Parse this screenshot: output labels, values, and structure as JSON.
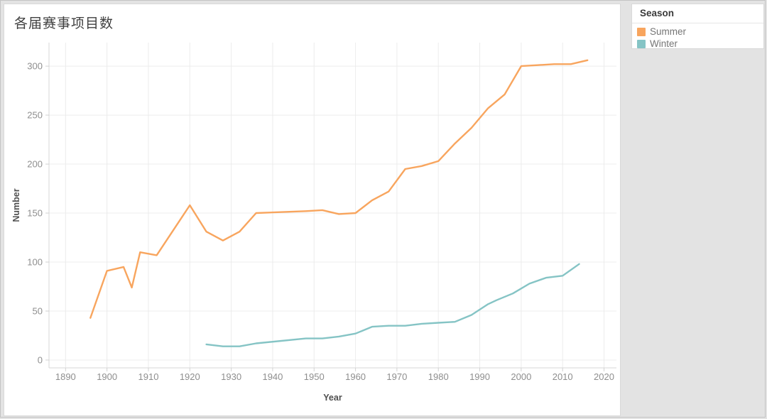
{
  "window": {
    "background_color": "#e3e3e3",
    "card_background": "#ffffff"
  },
  "title": "各届赛事项目数",
  "legend": {
    "title": "Season",
    "items": [
      {
        "label": "Summer",
        "color": "#F8A55E"
      },
      {
        "label": "Winter",
        "color": "#85C4C5"
      }
    ]
  },
  "chart_data": {
    "type": "line",
    "title": "各届赛事项目数",
    "xlabel": "Year",
    "ylabel": "Number",
    "xlim": [
      1886,
      2023
    ],
    "ylim": [
      -8,
      324
    ],
    "xticks": [
      1890,
      1900,
      1910,
      1920,
      1930,
      1940,
      1950,
      1960,
      1970,
      1980,
      1990,
      2000,
      2010,
      2020
    ],
    "yticks": [
      0,
      50,
      100,
      150,
      200,
      250,
      300
    ],
    "grid": true,
    "legend_position": "top-right",
    "series": [
      {
        "name": "Summer",
        "color": "#F8A55E",
        "points": [
          [
            1896,
            43
          ],
          [
            1900,
            91
          ],
          [
            1904,
            95
          ],
          [
            1906,
            74
          ],
          [
            1908,
            110
          ],
          [
            1912,
            107
          ],
          [
            1920,
            158
          ],
          [
            1924,
            131
          ],
          [
            1928,
            122
          ],
          [
            1932,
            131
          ],
          [
            1936,
            150
          ],
          [
            1948,
            152
          ],
          [
            1952,
            153
          ],
          [
            1956,
            149
          ],
          [
            1960,
            150
          ],
          [
            1964,
            163
          ],
          [
            1968,
            172
          ],
          [
            1972,
            195
          ],
          [
            1976,
            198
          ],
          [
            1980,
            203
          ],
          [
            1984,
            221
          ],
          [
            1988,
            237
          ],
          [
            1992,
            257
          ],
          [
            1996,
            271
          ],
          [
            2000,
            300
          ],
          [
            2004,
            301
          ],
          [
            2008,
            302
          ],
          [
            2012,
            302
          ],
          [
            2016,
            306
          ]
        ]
      },
      {
        "name": "Winter",
        "color": "#85C4C5",
        "points": [
          [
            1924,
            16
          ],
          [
            1928,
            14
          ],
          [
            1932,
            14
          ],
          [
            1936,
            17
          ],
          [
            1948,
            22
          ],
          [
            1952,
            22
          ],
          [
            1956,
            24
          ],
          [
            1960,
            27
          ],
          [
            1964,
            34
          ],
          [
            1968,
            35
          ],
          [
            1972,
            35
          ],
          [
            1976,
            37
          ],
          [
            1980,
            38
          ],
          [
            1984,
            39
          ],
          [
            1988,
            46
          ],
          [
            1992,
            57
          ],
          [
            1994,
            61
          ],
          [
            1998,
            68
          ],
          [
            2002,
            78
          ],
          [
            2006,
            84
          ],
          [
            2010,
            86
          ],
          [
            2014,
            98
          ]
        ]
      }
    ],
    "styles": {
      "gridline_color": "#ECECEC",
      "axis_line_color": "#D7D7D7",
      "tick_mark_color": "#D2D2D2",
      "tick_label_color": "#8E8E8E",
      "axis_title_color": "#4F4F4F"
    }
  }
}
